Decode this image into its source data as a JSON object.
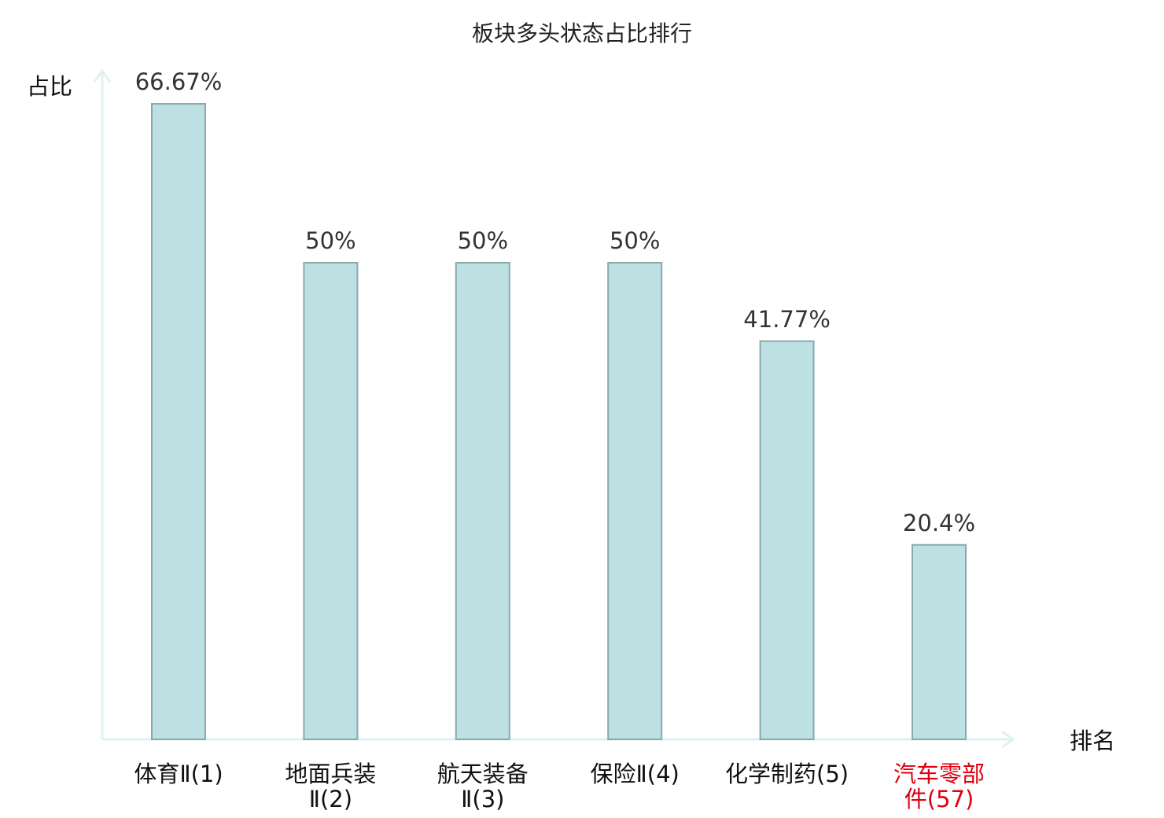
{
  "chart_data": {
    "type": "bar",
    "title": "板块多头状态占比排行",
    "ylabel": "占比",
    "xlabel": "排名",
    "ylim": [
      0,
      70
    ],
    "grid": false,
    "categories": [
      "体育Ⅱ(1)",
      "地面兵装Ⅱ(2)",
      "航天装备Ⅱ(3)",
      "保险Ⅱ(4)",
      "化学制药(5)",
      "汽车零部件(57)"
    ],
    "category_lines": [
      [
        "体育Ⅱ(1)"
      ],
      [
        "地面兵装",
        "Ⅱ(2)"
      ],
      [
        "航天装备",
        "Ⅱ(3)"
      ],
      [
        "保险Ⅱ(4)"
      ],
      [
        "化学制药(5)"
      ],
      [
        "汽车零部",
        "件(57)"
      ]
    ],
    "values": [
      66.67,
      50,
      50,
      50,
      41.77,
      20.4
    ],
    "value_labels": [
      "66.67%",
      "50%",
      "50%",
      "50%",
      "41.77%",
      "20.4%"
    ],
    "highlight_index": 5,
    "colors": {
      "bar_fill": "#bde0e3",
      "bar_stroke": "#8aa9ab",
      "axis": "#e0f2ef",
      "label_text": "#333333",
      "category_text": "#111111",
      "highlight_text": "#e0000f"
    }
  }
}
